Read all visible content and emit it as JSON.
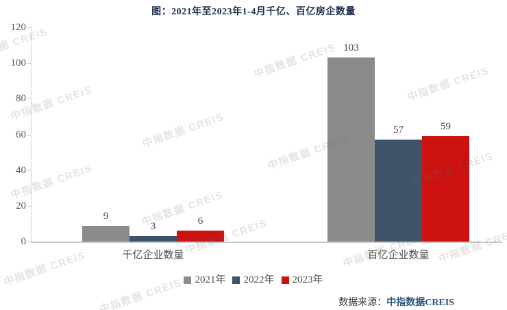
{
  "title": "图：2021年至2023年1-4月千亿、百亿房企数量",
  "watermark": {
    "text": "中指数据 CREIS"
  },
  "chart_data": {
    "type": "bar",
    "title": "图：2021年至2023年1-4月千亿、百亿房企数量",
    "categories": [
      "千亿企业数量",
      "百亿企业数量"
    ],
    "series": [
      {
        "name": "2021年",
        "color": "#8b8b8b",
        "values": [
          9,
          103
        ]
      },
      {
        "name": "2022年",
        "color": "#3e5269",
        "values": [
          3,
          57
        ]
      },
      {
        "name": "2023年",
        "color": "#cc1111",
        "values": [
          6,
          59
        ]
      }
    ],
    "ylim": [
      0,
      120
    ],
    "yticks": [
      0,
      20,
      40,
      60,
      80,
      100,
      120
    ],
    "xlabel": "",
    "ylabel": "",
    "grid": false,
    "legend_position": "bottom",
    "data_labels": true
  },
  "source": {
    "prefix": "数据来源：",
    "name": "中指数据CREIS"
  }
}
